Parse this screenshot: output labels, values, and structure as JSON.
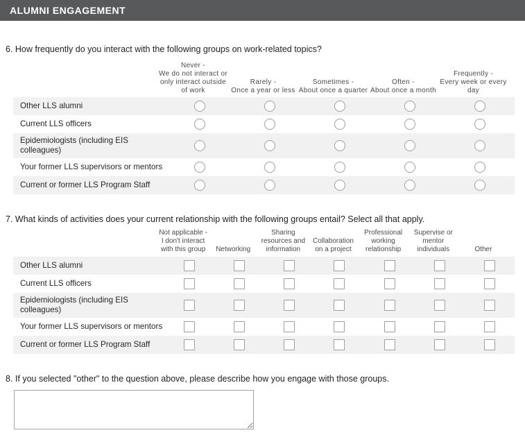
{
  "header": {
    "title": "ALUMNI ENGAGEMENT"
  },
  "questions": {
    "q6": {
      "text": "6. How frequently do you interact with the following groups on work-related topics?",
      "columns": [
        {
          "title": "Never -",
          "subtitle": "We do not interact or only interact outside of work"
        },
        {
          "title": "Rarely -",
          "subtitle": "Once a year or less"
        },
        {
          "title": "Sometimes -",
          "subtitle": "About once a quarter"
        },
        {
          "title": "Often -",
          "subtitle": "About once a month"
        },
        {
          "title": "Frequently -",
          "subtitle": "Every week or every day"
        }
      ],
      "rows": [
        "Other LLS alumni",
        "Current LLS officers",
        "Epidemiologists (including EIS colleagues)",
        "Your former LLS supervisors or mentors",
        "Current or former LLS Program Staff"
      ]
    },
    "q7": {
      "text": "7. What kinds of activities does your current relationship with the following groups entail? Select all that apply.",
      "columns": [
        "Not applicable - I don't interact with this group",
        "Networking",
        "Sharing resources and information",
        "Collaboration on a project",
        "Professional working relationship",
        "Supervise or mentor individuals",
        "Other"
      ],
      "rows": [
        "Other LLS alumni",
        "Current LLS officers",
        "Epidemiologists (including EIS colleagues)",
        "Your former LLS supervisors or mentors",
        "Current or former LLS Program Staff"
      ]
    },
    "q8": {
      "text": "8. If you selected \"other\" to the question above, please describe how you engage with those groups.",
      "textarea_value": ""
    }
  },
  "colors": {
    "section_bar_bg": "#58595b",
    "row_alt_bg": "#f1f1f1",
    "input_border": "#9e9e9e"
  }
}
